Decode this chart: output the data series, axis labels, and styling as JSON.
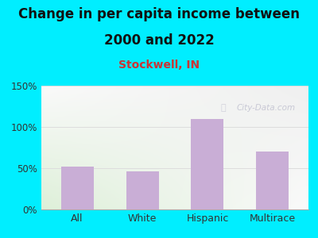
{
  "title_line1": "Change in per capita income between",
  "title_line2": "2000 and 2022",
  "subtitle": "Stockwell, IN",
  "categories": [
    "All",
    "White",
    "Hispanic",
    "Multirace"
  ],
  "values": [
    52,
    46,
    110,
    70
  ],
  "bar_color": "#c9aed6",
  "title_fontsize": 12,
  "subtitle_fontsize": 10,
  "subtitle_color": "#cc3333",
  "background_outer": "#00eeff",
  "plot_bg_topleft": "#dff0d8",
  "plot_bg_topright": "#f0f0f0",
  "plot_bg_bottom": "#ffffff",
  "ylim": [
    0,
    150
  ],
  "yticks": [
    0,
    50,
    100,
    150
  ],
  "ytick_labels": [
    "0%",
    "50%",
    "100%",
    "150%"
  ],
  "grid_color": "#dddddd",
  "watermark": "City-Data.com",
  "watermark_color": "#bbbbcc"
}
